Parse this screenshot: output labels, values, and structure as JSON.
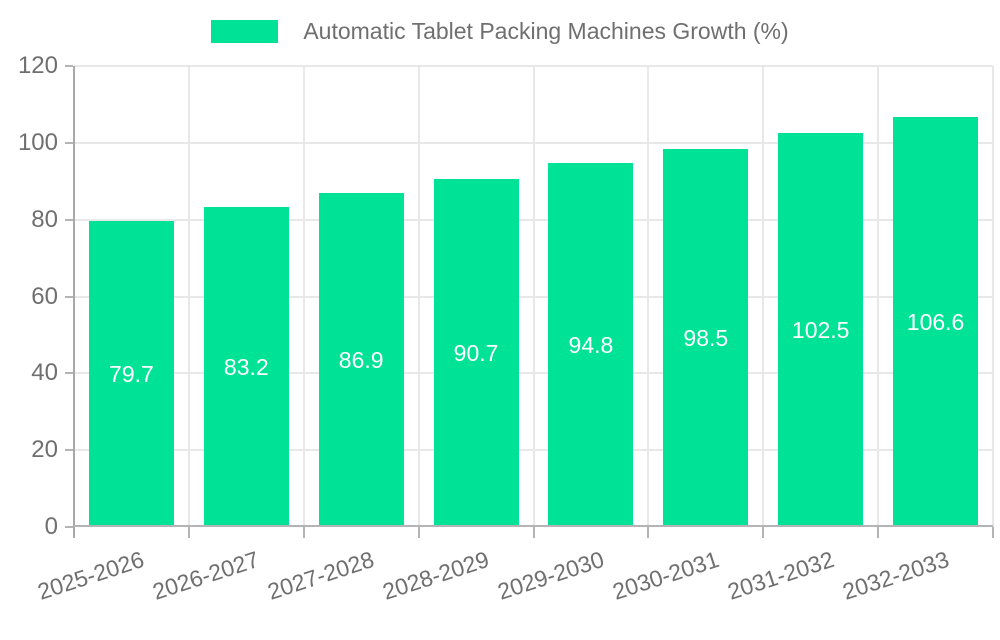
{
  "chart_data": {
    "type": "bar",
    "title": "Automatic Tablet Packing Machines Growth (%)",
    "categories": [
      "2025-2026",
      "2026-2027",
      "2027-2028",
      "2028-2029",
      "2029-2030",
      "2030-2031",
      "2031-2032",
      "2032-2033"
    ],
    "series": [
      {
        "name": "Automatic Tablet Packing Machines Growth (%)",
        "values": [
          79.7,
          83.2,
          86.9,
          90.7,
          94.8,
          98.5,
          102.5,
          106.6
        ]
      }
    ],
    "xlabel": "",
    "ylabel": "",
    "ylim": [
      0,
      120
    ],
    "yticks": [
      0,
      20,
      40,
      60,
      80,
      100,
      120
    ],
    "grid": "on",
    "legend_position": "top-center",
    "bar_color": "#00E396",
    "value_label_color": "#ffffff",
    "axis_text_color": "#6f6f6f"
  }
}
